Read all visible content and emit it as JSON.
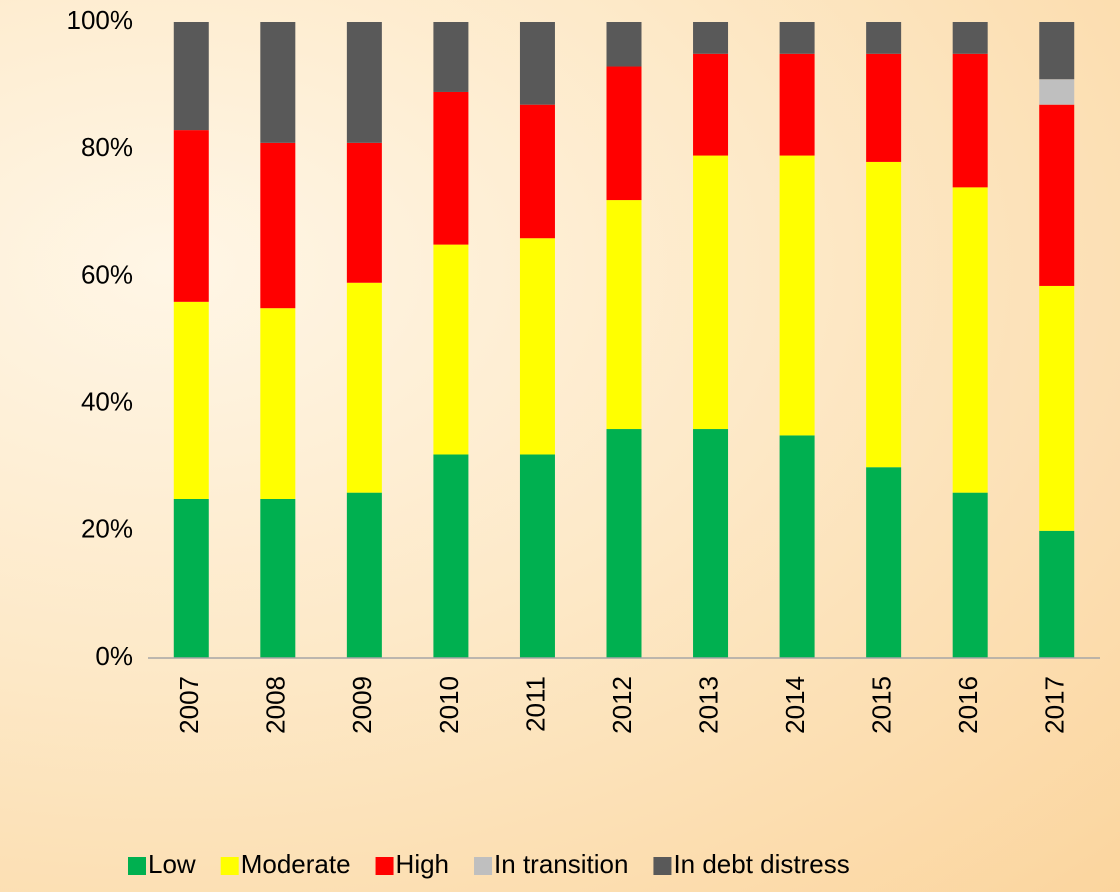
{
  "chart_data": {
    "type": "stacked_bar",
    "categories": [
      "2007",
      "2008",
      "2009",
      "2010",
      "2011",
      "2012",
      "2013",
      "2014",
      "2015",
      "2016",
      "2017"
    ],
    "series": [
      {
        "name": "Low",
        "color": "#00b050",
        "values": [
          25,
          25,
          26,
          32,
          32,
          36,
          36,
          35,
          30,
          26,
          20
        ]
      },
      {
        "name": "Moderate",
        "color": "#ffff00",
        "values": [
          31,
          30,
          33,
          33,
          34,
          36,
          43,
          44,
          48,
          48,
          38.5
        ]
      },
      {
        "name": "High",
        "color": "#ff0000",
        "values": [
          27,
          26,
          22,
          24,
          21,
          21,
          16,
          16,
          17,
          21,
          28.5
        ]
      },
      {
        "name": "In transition",
        "color": "#bfbfbf",
        "values": [
          0,
          0,
          0,
          0,
          0,
          0,
          0,
          0,
          0,
          0,
          4
        ]
      },
      {
        "name": "In debt distress",
        "color": "#595959",
        "values": [
          17,
          19,
          19,
          11,
          13,
          7,
          5,
          5,
          5,
          5,
          9
        ]
      }
    ],
    "ylim": [
      0,
      100
    ],
    "yticks": [
      {
        "value": 0,
        "label": "0%"
      },
      {
        "value": 20,
        "label": "20%"
      },
      {
        "value": 40,
        "label": "40%"
      },
      {
        "value": 60,
        "label": "60%"
      },
      {
        "value": 80,
        "label": "80%"
      },
      {
        "value": 100,
        "label": "100%"
      }
    ],
    "legend": "bottom"
  }
}
